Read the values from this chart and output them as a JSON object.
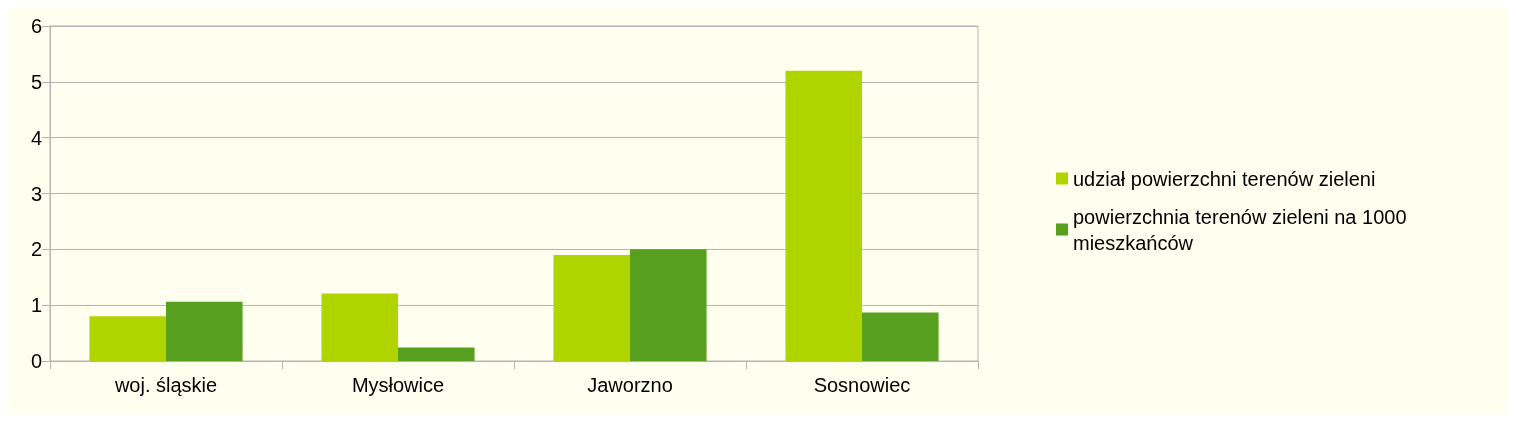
{
  "chart_data": {
    "type": "bar",
    "categories": [
      "woj. śląskie",
      "Mysłowice",
      "Jaworzno",
      "Sosnowiec"
    ],
    "series": [
      {
        "name": "udział powierzchni terenów zieleni",
        "color": "#b0d400",
        "values": [
          0.8,
          1.21,
          1.9,
          5.2
        ]
      },
      {
        "name": "powierzchnia terenów zieleni na 1000 mieszkańców",
        "color": "#57a01f",
        "values": [
          1.06,
          0.24,
          2.0,
          0.87
        ]
      }
    ],
    "ylim": [
      0,
      6
    ],
    "yticks": [
      0,
      1,
      2,
      3,
      4,
      5,
      6
    ],
    "grid": "y",
    "legend": "right"
  }
}
